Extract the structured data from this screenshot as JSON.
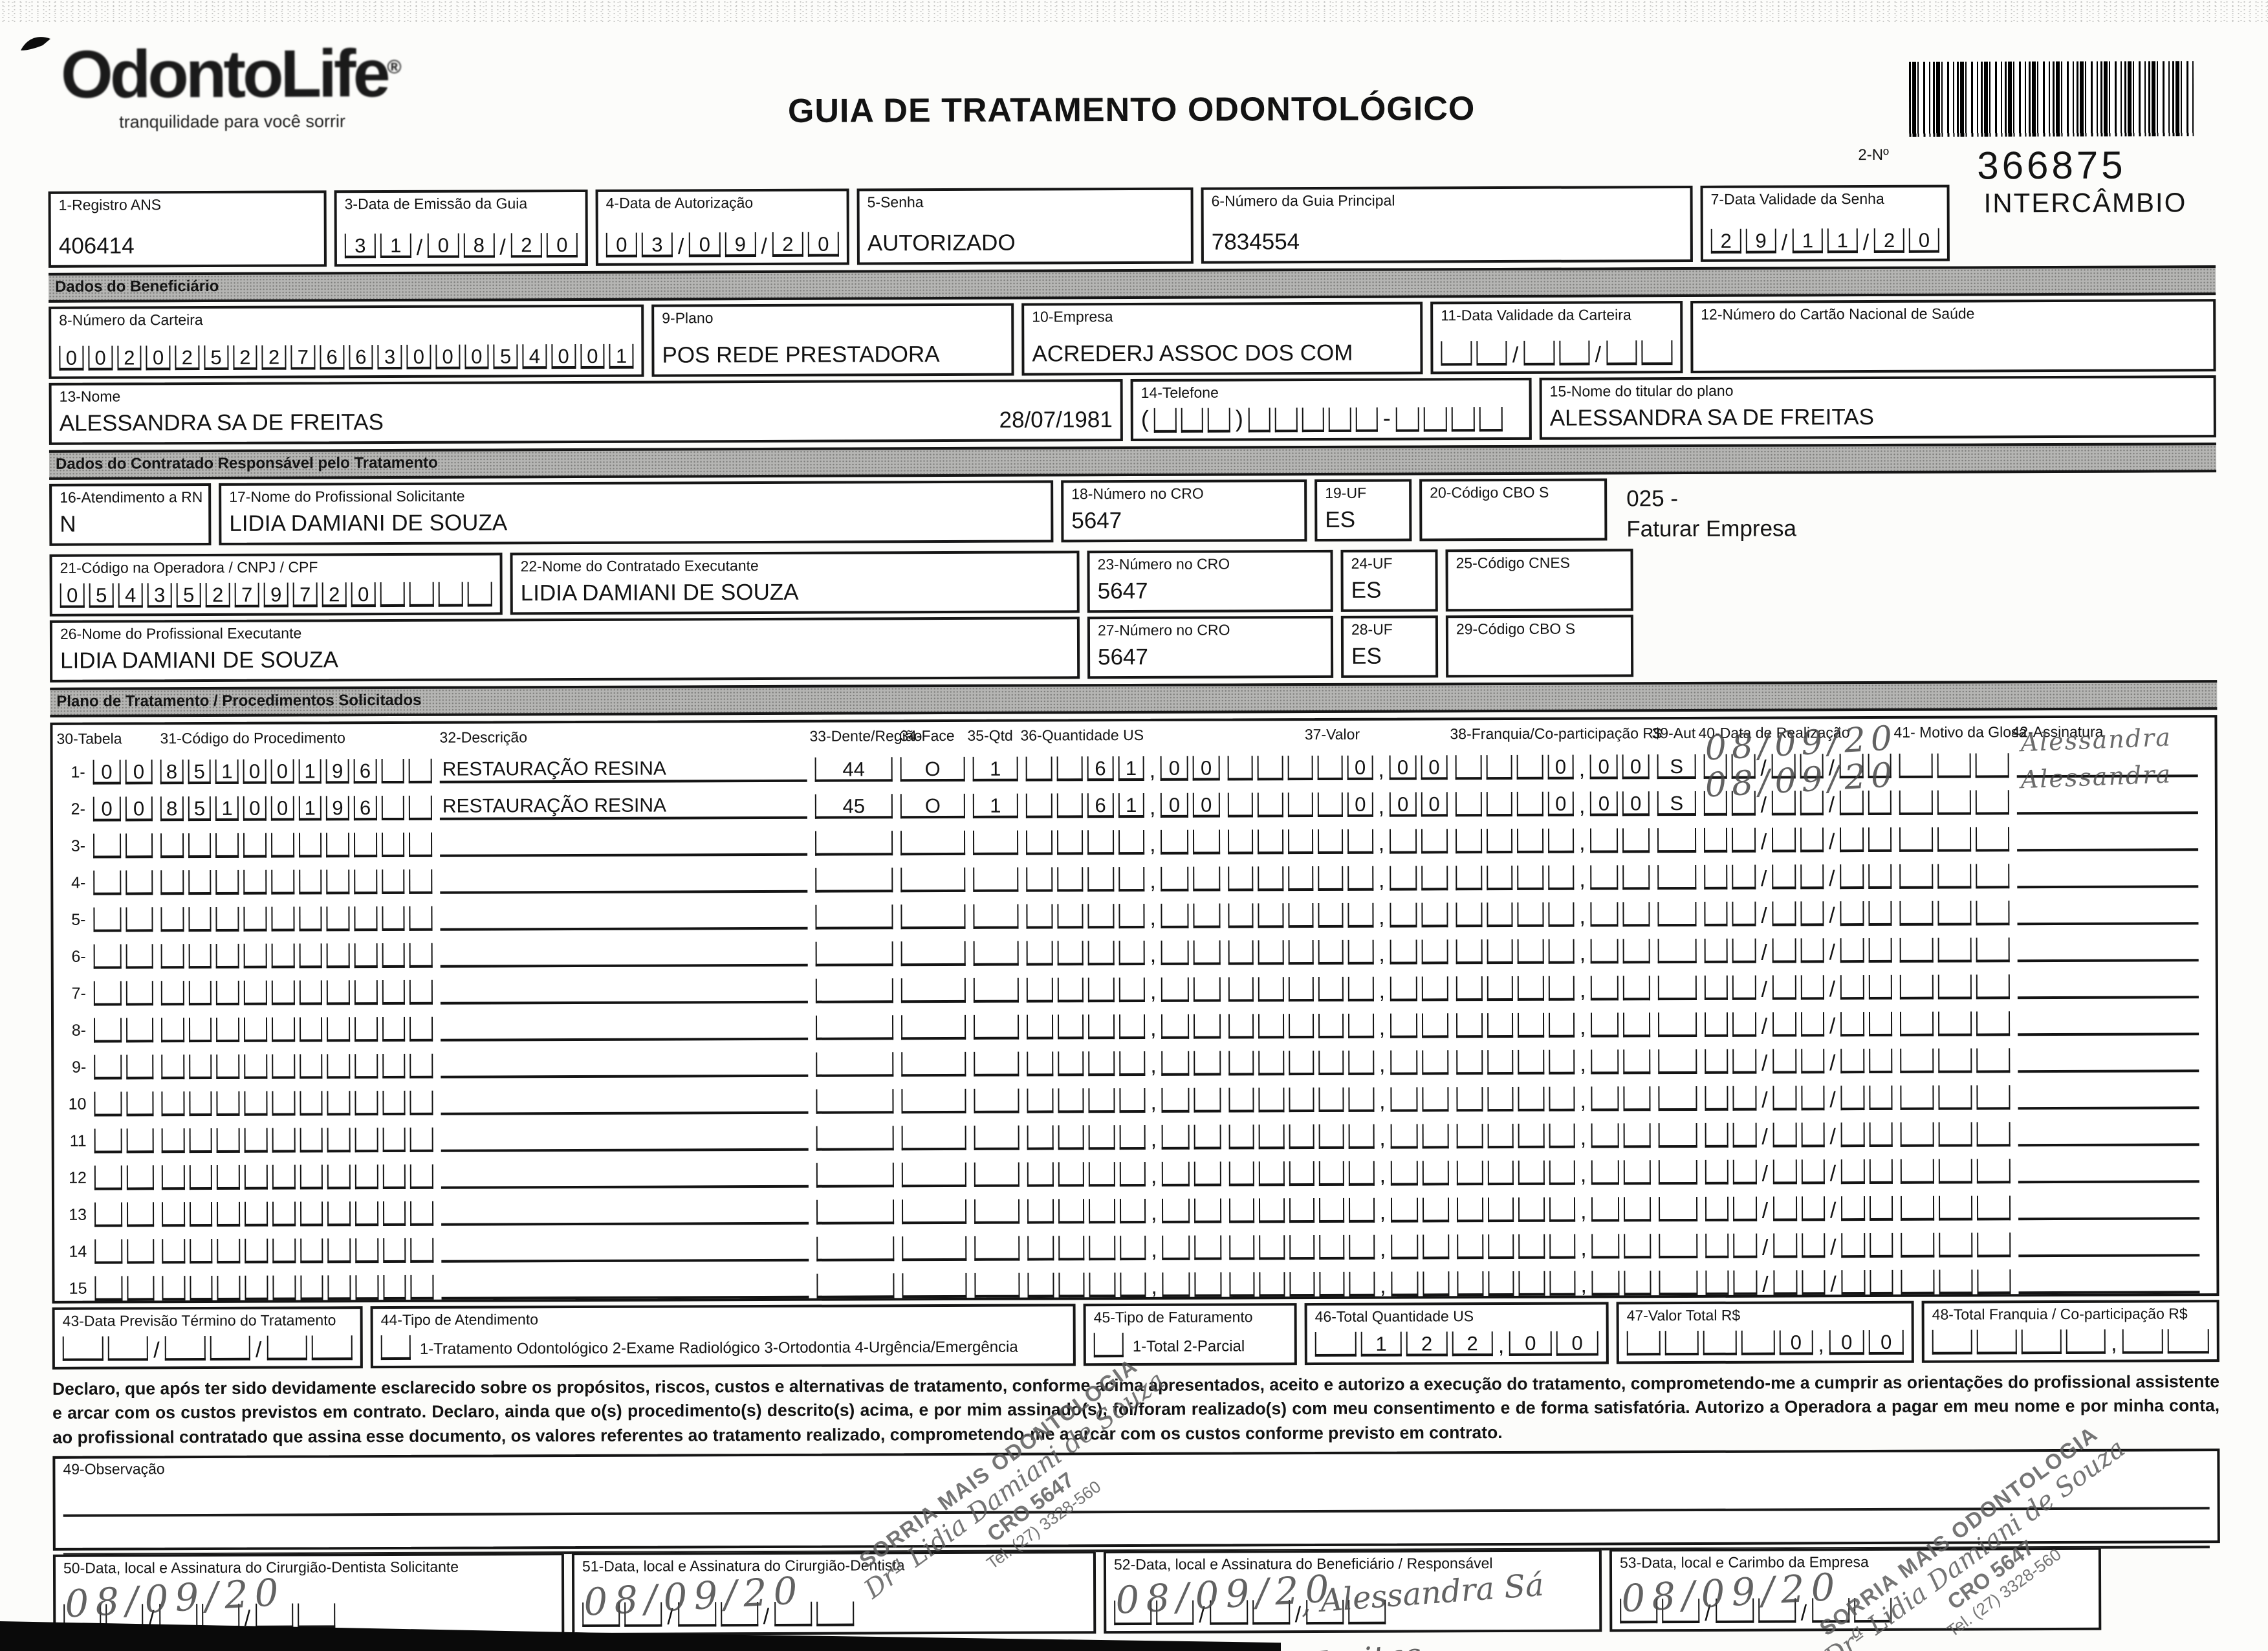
{
  "header": {
    "logo_name": "OdontoLife",
    "logo_reg": "®",
    "logo_tagline": "tranquilidade para você sorrir",
    "title": "GUIA DE TRATAMENTO ODONTOLÓGICO",
    "barcode_label": "2-Nº",
    "barcode_number": "366875",
    "barcode_caption": "INTERCÂMBIO"
  },
  "sections": {
    "beneficiario": "Dados do Beneficiário",
    "contratado": "Dados do Contratado Responsável pelo Tratamento",
    "plano": "Plano de Tratamento / Procedimentos Solicitados"
  },
  "fields": {
    "registro_ans": {
      "label": "1-Registro ANS",
      "value": "406414"
    },
    "emissao": {
      "label": "3-Data de Emissão da Guia",
      "value": "31/08/20"
    },
    "autorizacao": {
      "label": "4-Data de Autorização",
      "value": "03/09/20"
    },
    "senha": {
      "label": "5-Senha",
      "value": "AUTORIZADO"
    },
    "guia_principal": {
      "label": "6-Número da Guia Principal",
      "value": "7834554"
    },
    "validade_senha": {
      "label": "7-Data Validade da Senha",
      "value": "29/11/20"
    },
    "carteira": {
      "label": "8-Número da Carteira",
      "value": "00202522766300054001"
    },
    "plano": {
      "label": "9-Plano",
      "value": "POS REDE PRESTADORA"
    },
    "empresa": {
      "label": "10-Empresa",
      "value": "ACREDERJ ASSOC DOS COM"
    },
    "validade_carteira": {
      "label": "11-Data Validade da Carteira",
      "value": ""
    },
    "cns": {
      "label": "12-Número do Cartão Nacional de Saúde",
      "value": ""
    },
    "nome": {
      "label": "13-Nome",
      "value": "ALESSANDRA SA DE FREITAS",
      "nascimento": "28/07/1981"
    },
    "telefone": {
      "label": "14-Telefone",
      "value": ""
    },
    "titular": {
      "label": "15-Nome do titular do plano",
      "value": "ALESSANDRA SA DE FREITAS"
    },
    "rn": {
      "label": "16-Atendimento a RN",
      "value": "N"
    },
    "solicitante": {
      "label": "17-Nome do Profissional Solicitante",
      "value": "LIDIA DAMIANI DE SOUZA"
    },
    "cro18": {
      "label": "18-Número no CRO",
      "value": "5647"
    },
    "uf19": {
      "label": "19-UF",
      "value": "ES"
    },
    "cbo20": {
      "label": "20-Código CBO S",
      "value": ""
    },
    "nota_faturar": "025 -\nFaturar Empresa",
    "codigo_operadora": {
      "label": "21-Código na Operadora / CNPJ / CPF",
      "value": "05435279720"
    },
    "executante": {
      "label": "22-Nome do Contratado Executante",
      "value": "LIDIA DAMIANI DE SOUZA"
    },
    "cro23": {
      "label": "23-Número no CRO",
      "value": "5647"
    },
    "uf24": {
      "label": "24-UF",
      "value": "ES"
    },
    "cnes": {
      "label": "25-Código CNES",
      "value": ""
    },
    "prof_executante": {
      "label": "26-Nome do Profissional Executante",
      "value": "LIDIA DAMIANI DE SOUZA"
    },
    "cro27": {
      "label": "27-Número no CRO",
      "value": "5647"
    },
    "uf28": {
      "label": "28-UF",
      "value": "ES"
    },
    "cbo29": {
      "label": "29-Código CBO S",
      "value": ""
    },
    "previsao": {
      "label": "43-Data Previsão Término do Tratamento",
      "value": ""
    },
    "tipo_atendimento": {
      "label": "44-Tipo de Atendimento",
      "options": "1-Tratamento Odontológico  2-Exame Radiológico  3-Ortodontia  4-Urgência/Emergência",
      "value": ""
    },
    "tipo_faturamento": {
      "label": "45-Tipo de Faturamento",
      "options": "1-Total  2-Parcial",
      "value": ""
    },
    "total_us": {
      "label": "46-Total Quantidade US",
      "value": "122,00"
    },
    "valor_total": {
      "label": "47-Valor Total R$",
      "value": "0,00"
    },
    "total_franquia": {
      "label": "48-Total Franquia / Co-participação R$",
      "value": ""
    },
    "observacao": {
      "label": "49-Observação",
      "value": ""
    },
    "sig50": {
      "label": "50-Data, local e Assinatura do Cirurgião-Dentista Solicitante",
      "date": "08/09/20"
    },
    "sig51": {
      "label": "51-Data, local e Assinatura do Cirurgião-Dentista",
      "date": "08/09/20"
    },
    "sig52": {
      "label": "52-Data, local e Assinatura do Beneficiário / Responsável",
      "date": "08/09/20",
      "signature_line1": ", Alessandra Sá",
      "signature_line2": "de Freitas"
    },
    "sig53": {
      "label": "53-Data, local e Carimbo da Empresa",
      "date": "08/09/20"
    }
  },
  "table": {
    "headers": {
      "h30": "30-Tabela",
      "h31": "31-Código do Procedimento",
      "h32": "32-Descrição",
      "h33": "33-Dente/Região",
      "h34": "34-Face",
      "h35": "35-Qtd",
      "h36": "36-Quantidade US",
      "h37": "37-Valor",
      "h38": "38-Franquia/Co-participação R$",
      "h39": "39-Aut",
      "h40": "40-Data de Realização",
      "h41": "41- Motivo da Glosa",
      "h42": "42-Assinatura"
    },
    "rows": [
      {
        "n": "1",
        "tabela": "00",
        "codigo": "85100196",
        "descricao": "RESTAURAÇÃO RESINA",
        "dente": "44",
        "face": "O",
        "qtd": "1",
        "quantidade_us": "61,00",
        "valor": "0,00",
        "franquia": "0,00",
        "aut": "S",
        "data_realizacao": "08/09/20",
        "motivo_glosa": "",
        "assinatura": "Alessandra"
      },
      {
        "n": "2",
        "tabela": "00",
        "codigo": "85100196",
        "descricao": "RESTAURAÇÃO RESINA",
        "dente": "45",
        "face": "O",
        "qtd": "1",
        "quantidade_us": "61,00",
        "valor": "0,00",
        "franquia": "0,00",
        "aut": "S",
        "data_realizacao": "08/09/20",
        "motivo_glosa": "",
        "assinatura": "Alessandra"
      },
      {
        "n": "3"
      },
      {
        "n": "4"
      },
      {
        "n": "5"
      },
      {
        "n": "6"
      },
      {
        "n": "7"
      },
      {
        "n": "8"
      },
      {
        "n": "9"
      },
      {
        "n": "10"
      },
      {
        "n": "11"
      },
      {
        "n": "12"
      },
      {
        "n": "13"
      },
      {
        "n": "14"
      },
      {
        "n": "15"
      }
    ]
  },
  "declaration": "Declaro, que após ter sido devidamente esclarecido sobre os propósitos, riscos, custos e alternativas de tratamento, conforme acima apresentados, aceito e autorizo a execução do tratamento, comprometendo-me a cumprir as orientações do profissional assistente e arcar com os custos previstos em contrato. Declaro, ainda que o(s) procedimento(s) descrito(s) acima, e por mim assinado(s), foi/foram realizado(s) com meu consentimento e de forma satisfatória. Autorizo a Operadora a pagar em meu nome e por minha conta, ao profissional contratado que assina esse documento, os valores referentes ao tratamento realizado, comprometendo-me a arcar com os custos conforme previsto em contrato.",
  "stamp": {
    "line1": "SORRIA MAIS ODONTOLOGIA",
    "line2": "Drª Lidia Damiani de Souza",
    "line3": "CRO 5647",
    "line4": "Tel. (27) 3328-560"
  }
}
